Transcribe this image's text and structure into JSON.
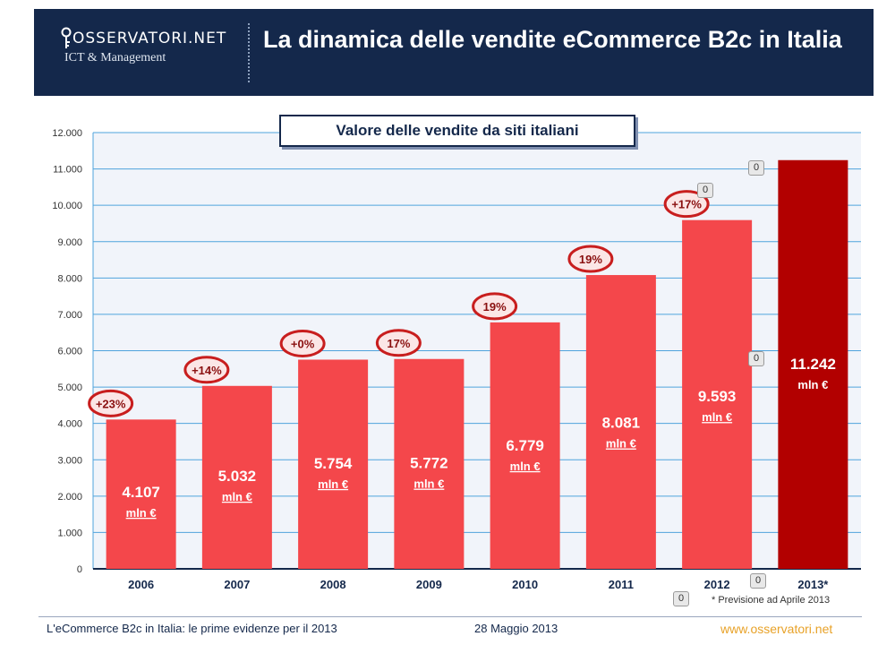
{
  "header": {
    "logo_top": "OSSERVATORI.NET",
    "logo_bottom": "ICT & Management",
    "title": "La dinamica delle vendite eCommerce B2c in Italia"
  },
  "footer": {
    "left_text": "L'eCommerce B2c in Italia: le prime evidenze per il 2013",
    "date": "28 Maggio 2013",
    "url": "www.osservatori.net"
  },
  "footnote": "* Previsione ad Aprile 2013",
  "flag_badges": [
    "0",
    "0",
    "0",
    "0",
    "0"
  ],
  "colors": {
    "header_bg": "#14284b",
    "bar": "#f4474b",
    "bar_forecast": "#b20000",
    "growth_ring": "#c81e1e"
  },
  "chart_data": {
    "type": "bar",
    "title": "Valore delle vendite da siti italiani",
    "categories": [
      "2006",
      "2007",
      "2008",
      "2009",
      "2010",
      "2011",
      "2012",
      "2013*"
    ],
    "values": [
      4107,
      5032,
      5754,
      5772,
      6779,
      8081,
      9593,
      11242
    ],
    "value_labels": [
      "4.107",
      "5.032",
      "5.754",
      "5.772",
      "6.779",
      "8.081",
      "9.593",
      "11.242"
    ],
    "unit_label": "mln €",
    "growth_labels": [
      "+23%",
      "+14%",
      "+0%",
      "17%",
      "19%",
      "19%",
      "+17%",
      ""
    ],
    "forecast_index": 7,
    "ylim": [
      0,
      12000
    ],
    "yticks": [
      0,
      1000,
      2000,
      3000,
      4000,
      5000,
      6000,
      7000,
      8000,
      9000,
      10000,
      11000,
      12000
    ],
    "ytick_labels": [
      "0",
      "1.000",
      "2.000",
      "3.000",
      "4.000",
      "5.000",
      "6.000",
      "7.000",
      "8.000",
      "9.000",
      "10.000",
      "11.000",
      "12.000"
    ],
    "grid": true
  }
}
